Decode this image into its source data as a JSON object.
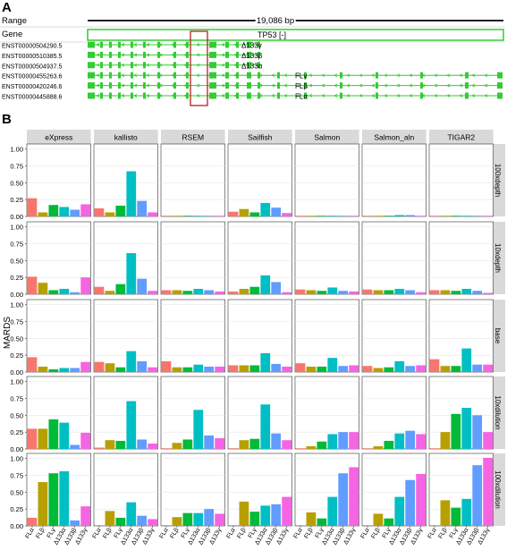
{
  "panel_a": {
    "letter": "A",
    "range_label": "Range",
    "range_value": "19,086 bp",
    "gene_label": "Gene",
    "gene_name": "TP53 [-]",
    "transcripts": [
      {
        "id": "ENST00000504290.5",
        "label": "Δ133γ"
      },
      {
        "id": "ENST00000510385.5",
        "label": "Δ133β"
      },
      {
        "id": "ENST00000504937.5",
        "label": "Δ133α"
      },
      {
        "id": "ENST00000455263.6",
        "label": "FLγ"
      },
      {
        "id": "ENST00000420246.6",
        "label": "FLβ"
      },
      {
        "id": "ENST00000445888.6",
        "label": "FLα"
      }
    ],
    "track_color": "#33cc33",
    "highlight_color": "#b22222"
  },
  "panel_b_letter": "B",
  "chart_data": {
    "type": "bar",
    "ylabel": "MARDS",
    "ylim": [
      0,
      1.0
    ],
    "yticks": [
      "0.00",
      "0.25",
      "0.50",
      "0.75",
      "1.00"
    ],
    "categories": [
      "FLα",
      "FLβ",
      "FLγ",
      "Δ133α",
      "Δ133β",
      "Δ133γ"
    ],
    "colors": [
      "#f8766d",
      "#b79f00",
      "#00ba38",
      "#00bfc4",
      "#619cff",
      "#f564e3"
    ],
    "methods": [
      "eXpress",
      "kallisto",
      "RSEM",
      "Sailfish",
      "Salmon",
      "Salmon_aln",
      "TIGAR2"
    ],
    "conditions": [
      "100xdepth",
      "10xdepth",
      "base",
      "10xdilution",
      "100xdilution"
    ],
    "values": {
      "100xdepth": {
        "eXpress": [
          0.27,
          0.06,
          0.17,
          0.14,
          0.1,
          0.18
        ],
        "kallisto": [
          0.12,
          0.06,
          0.16,
          0.67,
          0.23,
          0.06
        ],
        "RSEM": [
          0.01,
          0.01,
          0.01,
          0.01,
          0.01,
          0.01
        ],
        "Sailfish": [
          0.07,
          0.11,
          0.06,
          0.2,
          0.13,
          0.05
        ],
        "Salmon": [
          0.01,
          0.01,
          0.01,
          0.01,
          0.01,
          0.01
        ],
        "Salmon_aln": [
          0.01,
          0.01,
          0.01,
          0.02,
          0.02,
          0.01
        ],
        "TIGAR2": [
          0.01,
          0.01,
          0.01,
          0.01,
          0.01,
          0.01
        ]
      },
      "10xdepth": {
        "eXpress": [
          0.26,
          0.17,
          0.06,
          0.08,
          0.03,
          0.25
        ],
        "kallisto": [
          0.11,
          0.05,
          0.15,
          0.61,
          0.23,
          0.05
        ],
        "RSEM": [
          0.06,
          0.06,
          0.05,
          0.08,
          0.06,
          0.04
        ],
        "Sailfish": [
          0.04,
          0.08,
          0.11,
          0.28,
          0.18,
          0.03
        ],
        "Salmon": [
          0.07,
          0.06,
          0.05,
          0.1,
          0.05,
          0.04
        ],
        "Salmon_aln": [
          0.07,
          0.06,
          0.06,
          0.08,
          0.06,
          0.03
        ],
        "TIGAR2": [
          0.06,
          0.06,
          0.05,
          0.08,
          0.05,
          0.02
        ]
      },
      "base": {
        "eXpress": [
          0.22,
          0.08,
          0.04,
          0.06,
          0.06,
          0.15
        ],
        "kallisto": [
          0.15,
          0.13,
          0.07,
          0.31,
          0.16,
          0.07
        ],
        "RSEM": [
          0.16,
          0.07,
          0.07,
          0.11,
          0.08,
          0.08
        ],
        "Sailfish": [
          0.1,
          0.1,
          0.1,
          0.28,
          0.12,
          0.08
        ],
        "Salmon": [
          0.13,
          0.08,
          0.08,
          0.21,
          0.09,
          0.1
        ],
        "Salmon_aln": [
          0.09,
          0.06,
          0.07,
          0.16,
          0.09,
          0.1
        ],
        "TIGAR2": [
          0.19,
          0.09,
          0.09,
          0.35,
          0.11,
          0.11
        ]
      },
      "10xdilution": {
        "eXpress": [
          0.3,
          0.3,
          0.44,
          0.39,
          0.06,
          0.24
        ],
        "kallisto": [
          0.02,
          0.13,
          0.12,
          0.71,
          0.14,
          0.08
        ],
        "RSEM": [
          0.01,
          0.09,
          0.14,
          0.58,
          0.2,
          0.16
        ],
        "Sailfish": [
          0.01,
          0.13,
          0.15,
          0.66,
          0.23,
          0.13
        ],
        "Salmon": [
          0.01,
          0.04,
          0.11,
          0.22,
          0.25,
          0.25
        ],
        "Salmon_aln": [
          0.01,
          0.04,
          0.12,
          0.23,
          0.27,
          0.22
        ],
        "TIGAR2": [
          0.01,
          0.25,
          0.52,
          0.61,
          0.5,
          0.25
        ]
      },
      "100xdilution": {
        "eXpress": [
          0.12,
          0.65,
          0.78,
          0.81,
          0.08,
          0.29
        ],
        "kallisto": [
          0.01,
          0.22,
          0.12,
          0.35,
          0.15,
          0.1
        ],
        "RSEM": [
          0.01,
          0.13,
          0.19,
          0.19,
          0.25,
          0.18
        ],
        "Sailfish": [
          0.01,
          0.36,
          0.21,
          0.3,
          0.32,
          0.43
        ],
        "Salmon": [
          0.01,
          0.2,
          0.11,
          0.43,
          0.78,
          0.87
        ],
        "Salmon_aln": [
          0.01,
          0.18,
          0.11,
          0.43,
          0.68,
          0.77
        ],
        "TIGAR2": [
          0.01,
          0.38,
          0.27,
          0.4,
          0.9,
          1.01
        ]
      }
    },
    "grid": true,
    "legend": "none"
  }
}
